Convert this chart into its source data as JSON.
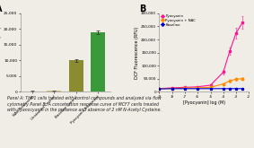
{
  "panel_a": {
    "categories": [
      "NAC Treatment",
      "Unstained Control",
      "Baseline Control",
      "Pyocyanin Treatment"
    ],
    "values": [
      150,
      250,
      10000,
      19000
    ],
    "errors": [
      80,
      80,
      400,
      600
    ],
    "bar_colors": [
      "#d4a0a0",
      "#c8b870",
      "#8b8b30",
      "#3a9a3a"
    ],
    "ylabel": "DCF Fluorescence (MFI)",
    "ylim": [
      0,
      25000
    ],
    "yticks": [
      0,
      5000,
      10000,
      15000,
      20000,
      25000
    ],
    "ytick_labels": [
      "0",
      "5,000",
      "10,000",
      "15,000",
      "20,000",
      "25,000"
    ],
    "title": "A"
  },
  "panel_b": {
    "x": [
      -9,
      -8,
      -7,
      -6,
      -5,
      -4,
      -3.5,
      -3,
      -2.5
    ],
    "pyocyanin_y": [
      12000,
      15000,
      17000,
      19000,
      25000,
      75000,
      155000,
      225000,
      265000
    ],
    "pyocyanin_err": [
      1500,
      1500,
      1500,
      1500,
      2500,
      8000,
      15000,
      20000,
      25000
    ],
    "nac_y": [
      12000,
      13000,
      14000,
      15000,
      17000,
      30000,
      42000,
      48000,
      50000
    ],
    "nac_err": [
      1000,
      1000,
      1000,
      1000,
      1500,
      3500,
      5000,
      5000,
      5000
    ],
    "baseline_y": [
      11000,
      12000,
      12000,
      12000,
      12000,
      12000,
      12000,
      12000,
      12000
    ],
    "baseline_err": [
      800,
      800,
      800,
      800,
      800,
      800,
      800,
      800,
      800
    ],
    "pyocyanin_color": "#ff1493",
    "nac_color": "#ff8c00",
    "baseline_color": "#0000cd",
    "ylabel": "DCF Fluorescence (RFU)",
    "xlabel": "[Pyocyanin] log (M)",
    "ylim": [
      0,
      300000
    ],
    "yticks": [
      0,
      50000,
      100000,
      150000,
      200000,
      250000,
      300000
    ],
    "ytick_labels": [
      "0",
      "50,000",
      "100,000",
      "150,000",
      "200,000",
      "250,000",
      "300,000"
    ],
    "xlim": [
      -9,
      -2
    ],
    "xticks": [
      -9,
      -8,
      -7,
      -6,
      -5,
      -4,
      -3,
      -2
    ],
    "xtick_labels": [
      "-9",
      "-8",
      "-7",
      "-6",
      "-5",
      "-4",
      "-3",
      "-2"
    ],
    "title": "B",
    "legend": [
      "Pyocyanin",
      "Pyocyanin + NAC",
      "Baseline"
    ]
  },
  "caption": "Panel A: THP1 cells treated with control compounds and analyzed via flow\ncytometry Panel B: A concetration response curve of MCF7 cerils treated\nwith pyanocyanin in the presence and absence of 2 nM N-Acetyl Cysteine.",
  "background_color": "#f0ece6"
}
